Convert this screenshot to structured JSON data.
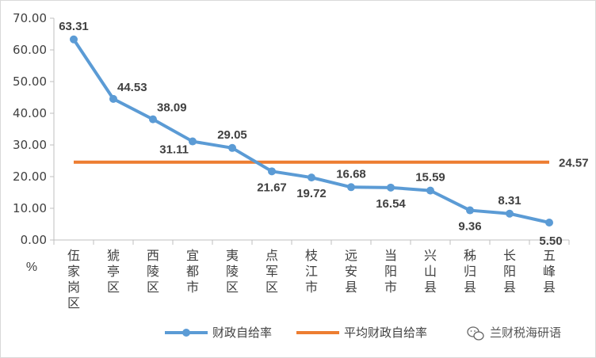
{
  "chart_data": {
    "type": "line",
    "categories": [
      "伍家岗区",
      "猇亭区",
      "西陵区",
      "宜都市",
      "夷陵区",
      "点军区",
      "枝江市",
      "远安县",
      "当阳市",
      "兴山县",
      "秭归县",
      "长阳县",
      "五峰县"
    ],
    "series": [
      {
        "name": "财政自给率",
        "color": "#5B9BD5",
        "values": [
          63.31,
          44.53,
          38.09,
          31.11,
          29.05,
          21.67,
          19.72,
          16.68,
          16.54,
          15.59,
          9.36,
          8.31,
          5.5
        ],
        "labels": [
          "63.31",
          "44.53",
          "38.09",
          "31.11",
          "29.05",
          "21.67",
          "19.72",
          "16.68",
          "16.54",
          "15.59",
          "9.36",
          "8.31",
          "5.50"
        ]
      },
      {
        "name": "平均财政自给率",
        "color": "#ED7D31",
        "value": 24.57,
        "label": "24.57"
      }
    ],
    "ylim": [
      0,
      70
    ],
    "yticks": [
      "0.00",
      "10.00",
      "20.00",
      "30.00",
      "40.00",
      "50.00",
      "60.00",
      "70.00"
    ],
    "ylabel": "%",
    "grid": false,
    "legend": "bottom"
  },
  "watermark": {
    "text": "兰财税海研语",
    "icon": "wechat-icon"
  }
}
